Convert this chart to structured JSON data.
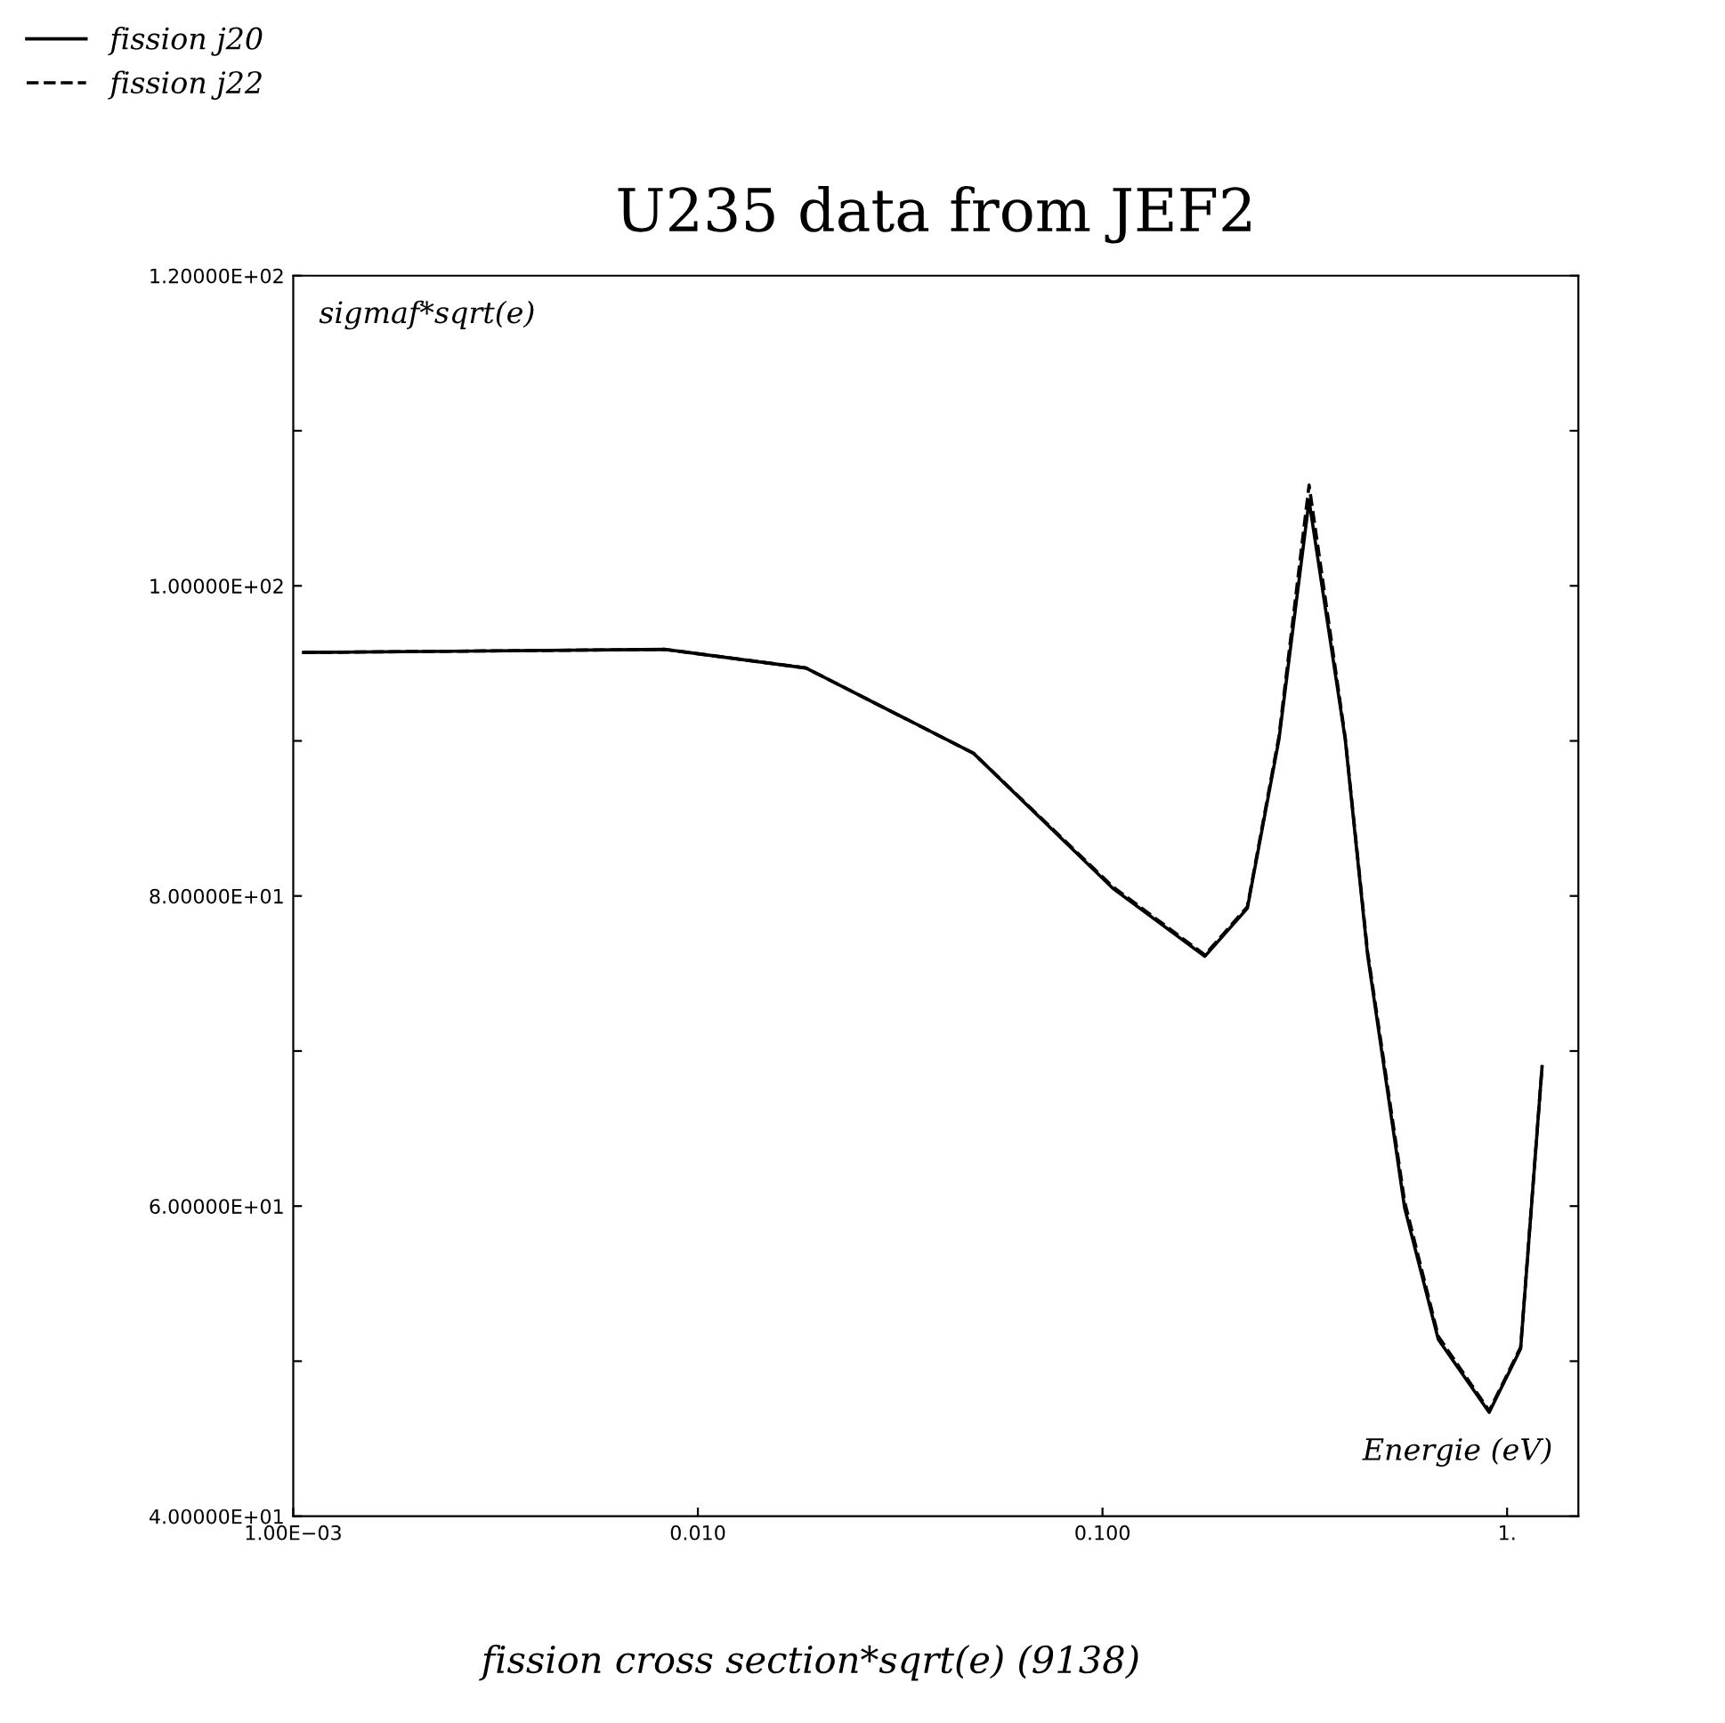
{
  "chart_data": {
    "type": "line",
    "title": "U235 data from JEF2",
    "xlabel": "Energie (eV)",
    "ylabel": "sigmaf*sqrt(e)",
    "annotations": [
      "fission cross section*sqrt(e) (9138)"
    ],
    "log": "x",
    "xlim": [
      0.001,
      1.5
    ],
    "ylim": [
      40,
      120
    ],
    "xticks": [
      {
        "value": 0.001,
        "label": "1.00E−03"
      },
      {
        "value": 0.01,
        "label": "0.010"
      },
      {
        "value": 0.1,
        "label": "0.100"
      },
      {
        "value": 1,
        "label": "1."
      }
    ],
    "yticks": [
      {
        "value": 40,
        "label": "4.00000E+01"
      },
      {
        "value": 50,
        "label": null
      },
      {
        "value": 60,
        "label": "6.00000E+01"
      },
      {
        "value": 70,
        "label": null
      },
      {
        "value": 80,
        "label": "8.00000E+01"
      },
      {
        "value": 90,
        "label": null
      },
      {
        "value": 100,
        "label": "1.00000E+02"
      },
      {
        "value": 110,
        "label": null
      },
      {
        "value": 120,
        "label": "1.20000E+02"
      }
    ],
    "grid": false,
    "legend": "top left",
    "marker": "none",
    "x": [
      0.00106,
      0.0083,
      0.0185,
      0.048,
      0.106,
      0.179,
      0.228,
      0.273,
      0.324,
      0.398,
      0.452,
      0.558,
      0.676,
      0.903,
      1.08,
      1.22
    ],
    "series": [
      {
        "name": "fission j20",
        "color": "#000000",
        "line_style": "solid",
        "values": [
          95.7,
          95.9,
          94.7,
          89.2,
          80.5,
          76.1,
          79.2,
          90.1,
          105.5,
          90.1,
          76.2,
          59.9,
          51.4,
          46.7,
          50.8,
          69
        ]
      },
      {
        "name": "fission j22",
        "color": "#000000",
        "line_style": "dashed",
        "values": [
          95.7,
          95.9,
          94.7,
          89.2,
          80.6,
          76.2,
          79.3,
          90.3,
          106.5,
          90.2,
          76.4,
          60.3,
          51.6,
          46.8,
          50.9,
          69
        ]
      }
    ]
  }
}
